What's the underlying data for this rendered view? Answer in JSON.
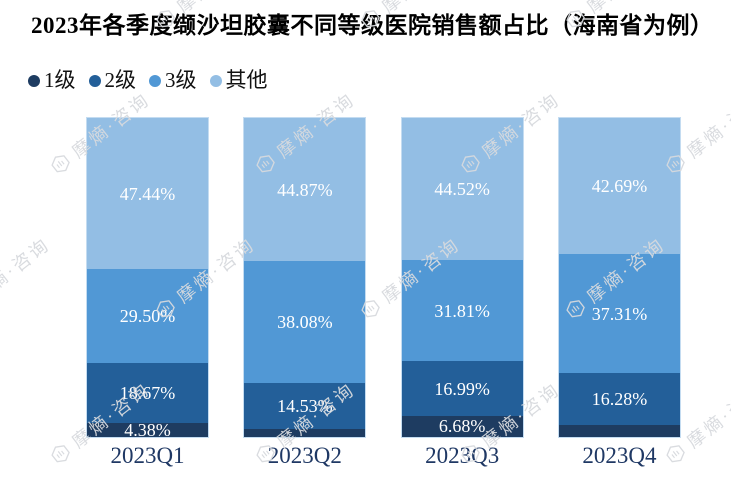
{
  "title": "2023年各季度缬沙坦胶囊不同等级医院销售额占比（海南省为例）",
  "watermark": {
    "text": "摩熵·咨询"
  },
  "chart_data": {
    "type": "bar",
    "stacked": true,
    "unit": "percent",
    "title": "2023年各季度缬沙坦胶囊不同等级医院销售额占比（海南省为例）",
    "categories": [
      "2023Q1",
      "2023Q2",
      "2023Q3",
      "2023Q4"
    ],
    "series": [
      {
        "name": "1级",
        "color": "#1E3C61",
        "values": [
          4.38,
          2.52,
          6.68,
          3.72
        ],
        "labels": [
          "4.38%",
          "",
          "6.68%",
          ""
        ]
      },
      {
        "name": "2级",
        "color": "#235F99",
        "values": [
          18.67,
          14.53,
          16.99,
          16.28
        ],
        "labels": [
          "18.67%",
          "14.53%",
          "16.99%",
          "16.28%"
        ]
      },
      {
        "name": "3级",
        "color": "#5198D5",
        "values": [
          29.5,
          38.08,
          31.81,
          37.31
        ],
        "labels": [
          "29.50%",
          "38.08%",
          "31.81%",
          "37.31%"
        ]
      },
      {
        "name": "其他",
        "color": "#93BEE4",
        "values": [
          47.44,
          44.87,
          44.52,
          42.69
        ],
        "labels": [
          "47.44%",
          "44.87%",
          "44.52%",
          "42.69%"
        ]
      }
    ],
    "ylim": [
      0,
      100
    ],
    "grid": false,
    "legend_position": "top-left",
    "axis_label_color": "#1F3864",
    "bar_label_color": "#ffffff"
  }
}
